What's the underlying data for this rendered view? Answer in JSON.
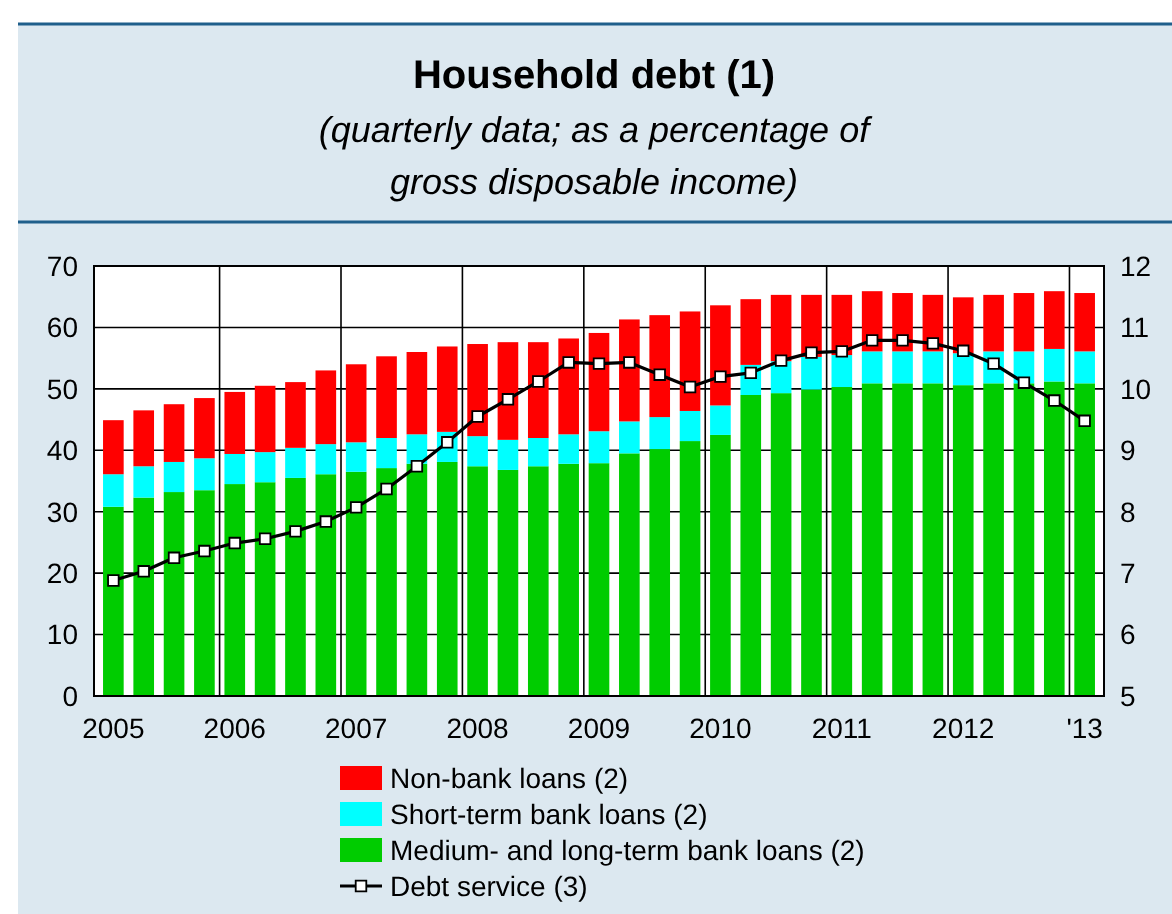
{
  "chart_data": {
    "type": "bar",
    "title": "Household debt (1)",
    "subtitle": "(quarterly data; as a percentage of gross disposable income)",
    "categories": [
      "2005",
      null,
      null,
      null,
      "2006",
      null,
      null,
      null,
      "2007",
      null,
      null,
      null,
      "2008",
      null,
      null,
      null,
      "2009",
      null,
      null,
      null,
      "2010",
      null,
      null,
      null,
      "2011",
      null,
      null,
      null,
      "2012",
      null,
      null,
      null,
      "'13"
    ],
    "stacked": true,
    "ylim": [
      0,
      70
    ],
    "yticks": [
      0,
      10,
      20,
      30,
      40,
      50,
      60,
      70
    ],
    "y2lim": [
      5,
      12
    ],
    "y2ticks": [
      5,
      6,
      7,
      8,
      9,
      10,
      11,
      12
    ],
    "grid": true,
    "legend": "bottom",
    "series": [
      {
        "name": "Medium- and long-term bank loans (2)",
        "color": "#00cc00",
        "values": [
          30.8,
          32.3,
          33.2,
          33.5,
          34.5,
          34.8,
          35.5,
          36.1,
          36.5,
          37.1,
          37.8,
          38.1,
          37.4,
          36.8,
          37.4,
          37.8,
          37.9,
          39.5,
          40.2,
          41.5,
          42.5,
          49.0,
          49.3,
          49.9,
          50.3,
          50.9,
          50.9,
          50.9,
          50.6,
          50.9,
          50.9,
          51.2,
          50.9
        ]
      },
      {
        "name": "Short-term bank loans (2)",
        "color": "#00ffff",
        "values": [
          5.3,
          5.1,
          4.9,
          5.2,
          4.9,
          4.9,
          4.9,
          4.9,
          4.8,
          4.9,
          4.8,
          4.9,
          4.9,
          4.9,
          4.6,
          4.8,
          5.2,
          5.2,
          5.2,
          4.9,
          4.8,
          4.9,
          5.2,
          5.3,
          5.2,
          5.2,
          5.2,
          5.2,
          5.2,
          5.2,
          5.2,
          5.3,
          5.2
        ]
      },
      {
        "name": "Non-bank loans (2)",
        "color": "#ff0000",
        "values": [
          8.8,
          9.1,
          9.4,
          9.8,
          10.1,
          10.8,
          10.7,
          12.0,
          12.7,
          13.3,
          13.4,
          13.9,
          15.0,
          15.9,
          15.6,
          15.6,
          16.0,
          16.6,
          16.6,
          16.2,
          16.3,
          10.7,
          10.8,
          10.1,
          9.8,
          9.8,
          9.5,
          9.2,
          9.1,
          9.2,
          9.5,
          9.4,
          9.5
        ]
      },
      {
        "name": "Debt service (3)",
        "type": "line",
        "axis": "y2",
        "color": "#000000",
        "marker": "square",
        "values": [
          6.88,
          7.03,
          7.25,
          7.36,
          7.49,
          7.56,
          7.68,
          7.84,
          8.07,
          8.37,
          8.74,
          9.13,
          9.55,
          9.83,
          10.12,
          10.43,
          10.41,
          10.43,
          10.23,
          10.03,
          10.2,
          10.26,
          10.46,
          10.59,
          10.61,
          10.79,
          10.79,
          10.74,
          10.62,
          10.41,
          10.1,
          9.81,
          9.48
        ]
      }
    ]
  }
}
